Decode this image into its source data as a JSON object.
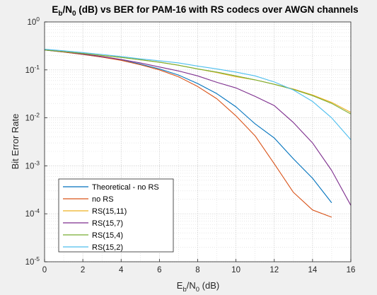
{
  "chart_data": {
    "type": "line",
    "title": {
      "prefix": "E",
      "sub1": "b",
      "mid": "/N",
      "sub2": "0",
      "suffix": " (dB) vs BER for PAM-16 with RS codecs over AWGN channels"
    },
    "xlabel": {
      "prefix": "E",
      "sub1": "b",
      "mid": "/N",
      "sub2": "0",
      "suffix": " (dB)"
    },
    "ylabel": "Bit Error Rate",
    "xlim": [
      0,
      16
    ],
    "ylim": [
      1e-05,
      1
    ],
    "yscale": "log",
    "grid": true,
    "minor_grid": true,
    "legend_position": "bottom-left",
    "x_ticks": [
      0,
      2,
      4,
      6,
      8,
      10,
      12,
      14,
      16
    ],
    "x_tick_labels": [
      "0",
      "2",
      "4",
      "6",
      "8",
      "10",
      "12",
      "14",
      "16"
    ],
    "y_ticks": [
      {
        "value": 1e-05,
        "base": "10",
        "exp": "-5"
      },
      {
        "value": 0.0001,
        "base": "10",
        "exp": "-4"
      },
      {
        "value": 0.001,
        "base": "10",
        "exp": "-3"
      },
      {
        "value": 0.01,
        "base": "10",
        "exp": "-2"
      },
      {
        "value": 0.1,
        "base": "10",
        "exp": "-1"
      },
      {
        "value": 1,
        "base": "10",
        "exp": "0"
      }
    ],
    "series": [
      {
        "name": "Theoretical - no RS",
        "color": "#0072bd",
        "x": [
          0,
          1,
          2,
          3,
          4,
          5,
          6,
          7,
          8,
          9,
          10,
          11,
          12,
          13,
          14,
          15
        ],
        "y": [
          0.26,
          0.235,
          0.21,
          0.185,
          0.16,
          0.132,
          0.105,
          0.078,
          0.052,
          0.032,
          0.017,
          0.0075,
          0.0038,
          0.0014,
          0.00055,
          0.00017
        ]
      },
      {
        "name": "no RS",
        "color": "#d95319",
        "x": [
          0,
          1,
          2,
          3,
          4,
          5,
          6,
          7,
          8,
          9,
          10,
          11,
          12,
          13,
          14,
          15
        ],
        "y": [
          0.26,
          0.235,
          0.21,
          0.185,
          0.158,
          0.128,
          0.1,
          0.072,
          0.045,
          0.025,
          0.011,
          0.0042,
          0.0011,
          0.00028,
          0.00012,
          8.5e-05
        ]
      },
      {
        "name": "RS(15,11)",
        "color": "#edb120",
        "x": [
          0,
          1,
          2,
          3,
          4,
          5,
          6,
          7,
          8,
          9,
          10,
          11,
          12,
          13,
          14,
          15,
          16
        ],
        "y": [
          0.26,
          0.24,
          0.22,
          0.2,
          0.182,
          0.163,
          0.145,
          0.125,
          0.105,
          0.088,
          0.072,
          0.062,
          0.05,
          0.04,
          0.03,
          0.021,
          0.013
        ]
      },
      {
        "name": "RS(15,7)",
        "color": "#7e2f8e",
        "x": [
          0,
          1,
          2,
          3,
          4,
          5,
          6,
          7,
          8,
          9,
          10,
          11,
          12,
          13,
          14,
          15,
          16
        ],
        "y": [
          0.26,
          0.24,
          0.215,
          0.19,
          0.165,
          0.14,
          0.115,
          0.095,
          0.075,
          0.055,
          0.042,
          0.028,
          0.018,
          0.008,
          0.003,
          0.0008,
          0.00015
        ]
      },
      {
        "name": "RS(15,4)",
        "color": "#77ac30",
        "x": [
          0,
          1,
          2,
          3,
          4,
          5,
          6,
          7,
          8,
          9,
          10,
          11,
          12,
          13,
          14,
          15,
          16
        ],
        "y": [
          0.26,
          0.24,
          0.22,
          0.2,
          0.182,
          0.163,
          0.145,
          0.125,
          0.105,
          0.09,
          0.075,
          0.062,
          0.05,
          0.039,
          0.029,
          0.02,
          0.012
        ]
      },
      {
        "name": "RS(15,2)",
        "color": "#4dbeee",
        "x": [
          0,
          1,
          2,
          3,
          4,
          5,
          6,
          7,
          8,
          9,
          10,
          11,
          12,
          13,
          14,
          15,
          16
        ],
        "y": [
          0.27,
          0.25,
          0.23,
          0.21,
          0.19,
          0.17,
          0.155,
          0.14,
          0.12,
          0.105,
          0.09,
          0.075,
          0.056,
          0.038,
          0.022,
          0.01,
          0.0035
        ]
      }
    ]
  }
}
